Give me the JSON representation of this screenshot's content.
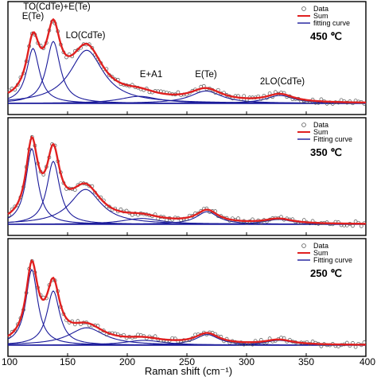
{
  "chart_data": {
    "type": "line",
    "xlabel": "Raman shift (cm⁻¹)",
    "xlim": [
      100,
      400
    ],
    "x_ticks": [
      100,
      150,
      200,
      250,
      300,
      350,
      400
    ],
    "x_tick_labels": [
      "100",
      "150",
      "200",
      "250",
      "300",
      "350",
      "400"
    ],
    "legend_placement": "top-right",
    "colors": {
      "data": "#555555",
      "sum": "#e02020",
      "fitting": "#1a1a9a",
      "frame": "#000000"
    },
    "panels": [
      {
        "temperature": "450 ℃",
        "legend": [
          "Data",
          "Sum",
          "fitting curve"
        ],
        "annotations": [
          {
            "text": "E(Te)",
            "x": 121
          },
          {
            "text": "TO(CdTe)+E(Te)",
            "x": 141
          },
          {
            "text": "LO(CdTe)",
            "x": 165
          },
          {
            "text": "E+A1",
            "x": 220
          },
          {
            "text": "E(Te)",
            "x": 266
          },
          {
            "text": "2LO(CdTe)",
            "x": 330
          }
        ],
        "ylim": [
          0,
          1.15
        ],
        "peaks": [
          {
            "center": 121,
            "height": 0.62,
            "width": 6.5
          },
          {
            "center": 138,
            "height": 0.7,
            "width": 7
          },
          {
            "center": 166,
            "height": 0.6,
            "width": 17
          },
          {
            "center": 210,
            "height": 0.08,
            "width": 20
          },
          {
            "center": 266,
            "height": 0.14,
            "width": 16
          },
          {
            "center": 328,
            "height": 0.09,
            "width": 14
          }
        ]
      },
      {
        "temperature": "350 ℃",
        "legend": [
          "Data",
          "Sum",
          "Fitting curve"
        ],
        "annotations": [],
        "ylim": [
          0,
          1.1
        ],
        "peaks": [
          {
            "center": 120,
            "height": 0.78,
            "width": 6
          },
          {
            "center": 138,
            "height": 0.65,
            "width": 6.5
          },
          {
            "center": 165,
            "height": 0.36,
            "width": 16
          },
          {
            "center": 212,
            "height": 0.06,
            "width": 20
          },
          {
            "center": 267,
            "height": 0.13,
            "width": 11
          },
          {
            "center": 327,
            "height": 0.05,
            "width": 14
          }
        ]
      },
      {
        "temperature": "250 ℃",
        "legend": [
          "Data",
          "Sum",
          "Fitting curve"
        ],
        "annotations": [],
        "ylim": [
          0,
          1.1
        ],
        "peaks": [
          {
            "center": 120,
            "height": 0.78,
            "width": 6
          },
          {
            "center": 138,
            "height": 0.56,
            "width": 6.5
          },
          {
            "center": 166,
            "height": 0.18,
            "width": 18
          },
          {
            "center": 214,
            "height": 0.05,
            "width": 20
          },
          {
            "center": 267,
            "height": 0.11,
            "width": 12
          },
          {
            "center": 327,
            "height": 0.05,
            "width": 14
          }
        ]
      }
    ]
  }
}
